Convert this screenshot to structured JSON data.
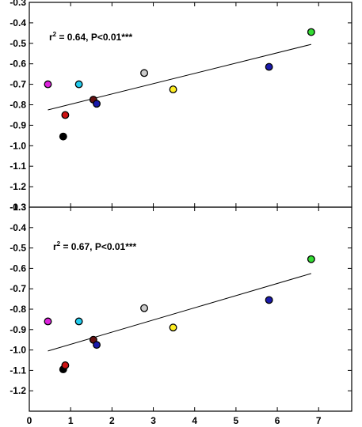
{
  "chart_data": [
    {
      "type": "scatter",
      "panel": "top",
      "xlim": [
        0,
        7.8
      ],
      "ylim": [
        -1.3,
        -0.3
      ],
      "yticks": [
        -0.3,
        -0.4,
        -0.5,
        -0.6,
        -0.7,
        -0.8,
        -0.9,
        -1.0,
        -1.1,
        -1.2,
        -1.3
      ],
      "ytick_labels": [
        "-0.3",
        "-0.4",
        "-0.5",
        "-0.6",
        "-0.7",
        "-0.8",
        "-0.9",
        "-1.0",
        "-1.1",
        "-1.2",
        "-1.3"
      ],
      "annotation": {
        "prefix": "r",
        "sup": "2",
        "rest": " = 0.64, P<0.01***"
      },
      "points": [
        {
          "x": 0.45,
          "y": -0.7,
          "color": "#dd22dd"
        },
        {
          "x": 0.82,
          "y": -0.955,
          "color": "#000000"
        },
        {
          "x": 0.87,
          "y": -0.85,
          "color": "#cc1111"
        },
        {
          "x": 1.2,
          "y": -0.7,
          "color": "#22ccee"
        },
        {
          "x": 1.55,
          "y": -0.775,
          "color": "#661111"
        },
        {
          "x": 1.63,
          "y": -0.795,
          "color": "#1a1aaa"
        },
        {
          "x": 2.78,
          "y": -0.645,
          "color": "#cccccc"
        },
        {
          "x": 3.48,
          "y": -0.725,
          "color": "#ffee22"
        },
        {
          "x": 5.8,
          "y": -0.615,
          "color": "#1a1aaa"
        },
        {
          "x": 6.82,
          "y": -0.445,
          "color": "#33dd33"
        }
      ],
      "fit_line": {
        "x": [
          0.45,
          6.82
        ],
        "y": [
          -0.825,
          -0.505
        ]
      }
    },
    {
      "type": "scatter",
      "panel": "bottom",
      "xlim": [
        0,
        7.8
      ],
      "ylim": [
        -1.3,
        -0.3
      ],
      "xticks": [
        0,
        1,
        2,
        3,
        4,
        5,
        6,
        7
      ],
      "xtick_labels": [
        "0",
        "1",
        "2",
        "3",
        "4",
        "5",
        "6",
        "7"
      ],
      "yticks": [
        -0.3,
        -0.4,
        -0.5,
        -0.6,
        -0.7,
        -0.8,
        -0.9,
        -1.0,
        -1.1,
        -1.2
      ],
      "ytick_labels": [
        "-0.3",
        "-0.4",
        "-0.5",
        "-0.6",
        "-0.7",
        "-0.8",
        "-0.9",
        "-1.0",
        "-1.1",
        "-1.2"
      ],
      "annotation": {
        "prefix": "r",
        "sup": "2",
        "rest": " = 0.67, P<0.01***"
      },
      "points": [
        {
          "x": 0.45,
          "y": -0.86,
          "color": "#dd22dd"
        },
        {
          "x": 0.82,
          "y": -1.095,
          "color": "#000000"
        },
        {
          "x": 0.87,
          "y": -1.075,
          "color": "#cc1111"
        },
        {
          "x": 1.2,
          "y": -0.86,
          "color": "#22ccee"
        },
        {
          "x": 1.55,
          "y": -0.95,
          "color": "#661111"
        },
        {
          "x": 1.63,
          "y": -0.975,
          "color": "#1a1aaa"
        },
        {
          "x": 2.78,
          "y": -0.795,
          "color": "#cccccc"
        },
        {
          "x": 3.48,
          "y": -0.89,
          "color": "#ffee22"
        },
        {
          "x": 5.8,
          "y": -0.755,
          "color": "#1a1aaa"
        },
        {
          "x": 6.82,
          "y": -0.555,
          "color": "#33dd33"
        }
      ],
      "fit_line": {
        "x": [
          0.45,
          6.82
        ],
        "y": [
          -1.005,
          -0.625
        ]
      }
    }
  ]
}
